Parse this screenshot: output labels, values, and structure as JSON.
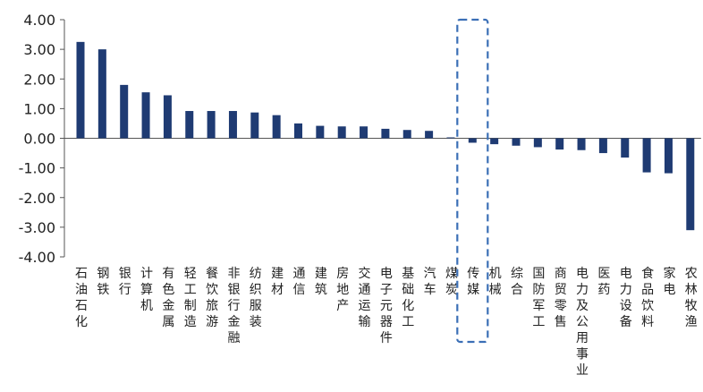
{
  "chart_data": {
    "type": "bar",
    "title": "",
    "xlabel": "",
    "ylabel": "",
    "ylim": [
      -4,
      4
    ],
    "yticks": [
      "4.00",
      "3.00",
      "2.00",
      "1.00",
      "0.00",
      "-1.00",
      "-2.00",
      "-3.00",
      "-4.00"
    ],
    "categories": [
      "石油石化",
      "钢铁",
      "银行",
      "计算机",
      "有色金属",
      "轻工制造",
      "餐饮旅游",
      "非银行金融",
      "纺织服装",
      "建材",
      "通信",
      "建筑",
      "房地产",
      "交通运输",
      "电子元器件",
      "基础化工",
      "汽车",
      "煤炭",
      "传媒",
      "机械",
      "综合",
      "国防军工",
      "商贸零售",
      "电力及公用事业",
      "医药",
      "电力设备",
      "食品饮料",
      "家电",
      "农林牧渔"
    ],
    "values": [
      3.25,
      3.0,
      1.8,
      1.55,
      1.45,
      0.92,
      0.92,
      0.92,
      0.87,
      0.78,
      0.5,
      0.42,
      0.4,
      0.4,
      0.32,
      0.28,
      0.25,
      0.03,
      -0.15,
      -0.2,
      -0.25,
      -0.3,
      -0.38,
      -0.4,
      -0.5,
      -0.65,
      -1.15,
      -1.18,
      -3.1
    ],
    "highlight": "传媒",
    "grid": false,
    "legend": "none",
    "colors": {
      "bar": "#1f3b73",
      "axis": "#555555",
      "highlight_box": "#3b6fb6"
    }
  }
}
